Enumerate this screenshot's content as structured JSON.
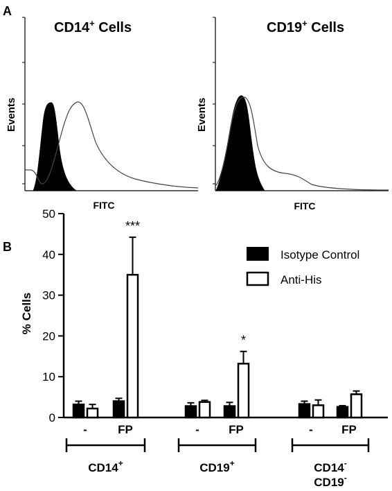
{
  "panel_a": {
    "label": "A",
    "hist_left": {
      "title": "CD14",
      "title_sup": "+",
      "title_suffix": " Cells",
      "ylabel": "Events",
      "xlabel": "FITC"
    },
    "hist_right": {
      "title": "CD19",
      "title_sup": "+",
      "title_suffix": " Cells",
      "ylabel": "Events",
      "xlabel": "FITC"
    }
  },
  "panel_b": {
    "label": "B",
    "ylabel": "% Cells"
  },
  "colors": {
    "isotype": "#000000",
    "anti_his": "#ffffff",
    "stroke": "#000000"
  },
  "chart_data": [
    {
      "type": "area",
      "title": "CD14+ Cells",
      "xlabel": "FITC",
      "ylabel": "Events",
      "series": [
        {
          "name": "Isotype Control",
          "fill": "solid",
          "peak_x": 0.16,
          "peak_y": 0.78,
          "width": 0.07
        },
        {
          "name": "Anti-His",
          "fill": "none",
          "peak_x": 0.33,
          "peak_y": 0.82,
          "width": 0.12
        }
      ]
    },
    {
      "type": "area",
      "title": "CD19+ Cells",
      "xlabel": "FITC",
      "ylabel": "Events",
      "series": [
        {
          "name": "Isotype Control",
          "fill": "solid",
          "peak_x": 0.28,
          "peak_y": 0.88,
          "width": 0.1
        },
        {
          "name": "Anti-His",
          "fill": "none",
          "peak_x": 0.33,
          "peak_y": 0.88,
          "width": 0.14
        }
      ]
    },
    {
      "type": "bar",
      "ylabel": "% Cells",
      "ylim": [
        0,
        50
      ],
      "yticks": [
        "0",
        "10",
        "20",
        "30",
        "40",
        "50"
      ],
      "legend": {
        "placement": "top-right",
        "items": [
          "Isotype Control",
          "Anti-His"
        ]
      },
      "groups": [
        {
          "label": "CD14",
          "sup": "+",
          "sub_label": "",
          "sub_sup": "",
          "conditions": [
            {
              "label": "-",
              "isotype": 3.2,
              "isotype_err": 0.8,
              "anti_his": 2.2,
              "anti_his_err": 1.0,
              "sig": ""
            },
            {
              "label": "FP",
              "isotype": 4.0,
              "isotype_err": 0.7,
              "anti_his": 35.0,
              "anti_his_err": 9.2,
              "sig": "***"
            }
          ]
        },
        {
          "label": "CD19",
          "sup": "+",
          "sub_label": "",
          "sub_sup": "",
          "conditions": [
            {
              "label": "-",
              "isotype": 2.8,
              "isotype_err": 0.8,
              "anti_his": 3.8,
              "anti_his_err": 0.4,
              "sig": ""
            },
            {
              "label": "FP",
              "isotype": 2.8,
              "isotype_err": 0.9,
              "anti_his": 13.2,
              "anti_his_err": 3.0,
              "sig": "*"
            }
          ]
        },
        {
          "label": "CD14",
          "sup": "-",
          "sub_label": "CD19",
          "sub_sup": "-",
          "conditions": [
            {
              "label": "-",
              "isotype": 3.3,
              "isotype_err": 0.7,
              "anti_his": 3.0,
              "anti_his_err": 1.3,
              "sig": ""
            },
            {
              "label": "FP",
              "isotype": 2.6,
              "isotype_err": 0.3,
              "anti_his": 5.7,
              "anti_his_err": 0.8,
              "sig": ""
            }
          ]
        }
      ]
    }
  ]
}
